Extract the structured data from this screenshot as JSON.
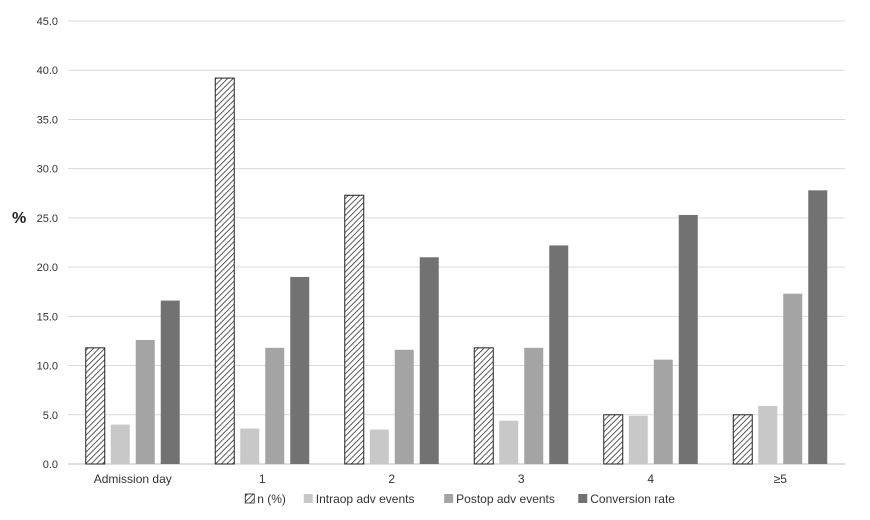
{
  "chart_data": {
    "type": "bar",
    "ylabel": "%",
    "xlabel": "",
    "ylim": [
      0,
      45
    ],
    "yticks": [
      "0.0",
      "5.0",
      "10.0",
      "15.0",
      "20.0",
      "25.0",
      "30.0",
      "35.0",
      "40.0",
      "45.0"
    ],
    "categories": [
      "Admission day",
      "1",
      "2",
      "3",
      "4",
      "≥5"
    ],
    "grid": true,
    "legend_position": "bottom",
    "series": [
      {
        "name": "n (%)",
        "color": "#ffffff",
        "pattern": "hatched",
        "values": [
          11.8,
          39.2,
          27.3,
          11.8,
          5.0,
          5.0
        ]
      },
      {
        "name": "Intraop adv events",
        "color": "#c8c8c8",
        "values": [
          4.0,
          3.6,
          3.5,
          4.4,
          4.9,
          5.9
        ]
      },
      {
        "name": "Postop adv events",
        "color": "#a4a4a4",
        "values": [
          12.6,
          11.8,
          11.6,
          11.8,
          10.6,
          17.3
        ]
      },
      {
        "name": "Conversion rate",
        "color": "#727272",
        "values": [
          16.6,
          19.0,
          21.0,
          22.2,
          25.3,
          27.8
        ]
      }
    ]
  }
}
